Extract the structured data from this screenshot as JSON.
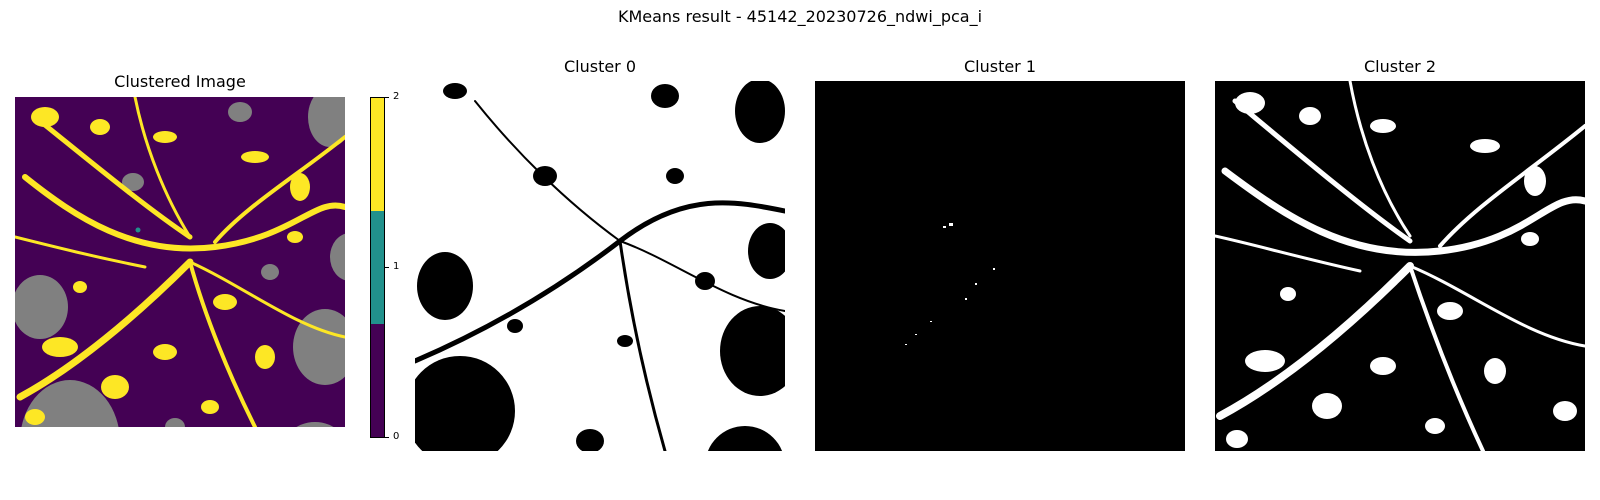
{
  "figure": {
    "suptitle": "KMeans result - 45142_20230726_ndwi_pca_i"
  },
  "colors": {
    "cluster_0": "#440154",
    "cluster_1": "#21918c",
    "cluster_2": "#fde725",
    "nodata": "#808080",
    "mask_on": "#ffffff",
    "mask_off": "#000000"
  },
  "chart_data": [
    {
      "type": "heatmap",
      "title": "Clustered Image",
      "colormap": "viridis",
      "colorbar": {
        "range": [
          0,
          2
        ],
        "ticks": [
          "0",
          "1",
          "2"
        ]
      },
      "classes": [
        "0",
        "1",
        "2"
      ]
    },
    {
      "type": "heatmap",
      "title": "Cluster 0",
      "colormap": "binary"
    },
    {
      "type": "heatmap",
      "title": "Cluster 1",
      "colormap": "binary"
    },
    {
      "type": "heatmap",
      "title": "Cluster 2",
      "colormap": "binary"
    }
  ]
}
